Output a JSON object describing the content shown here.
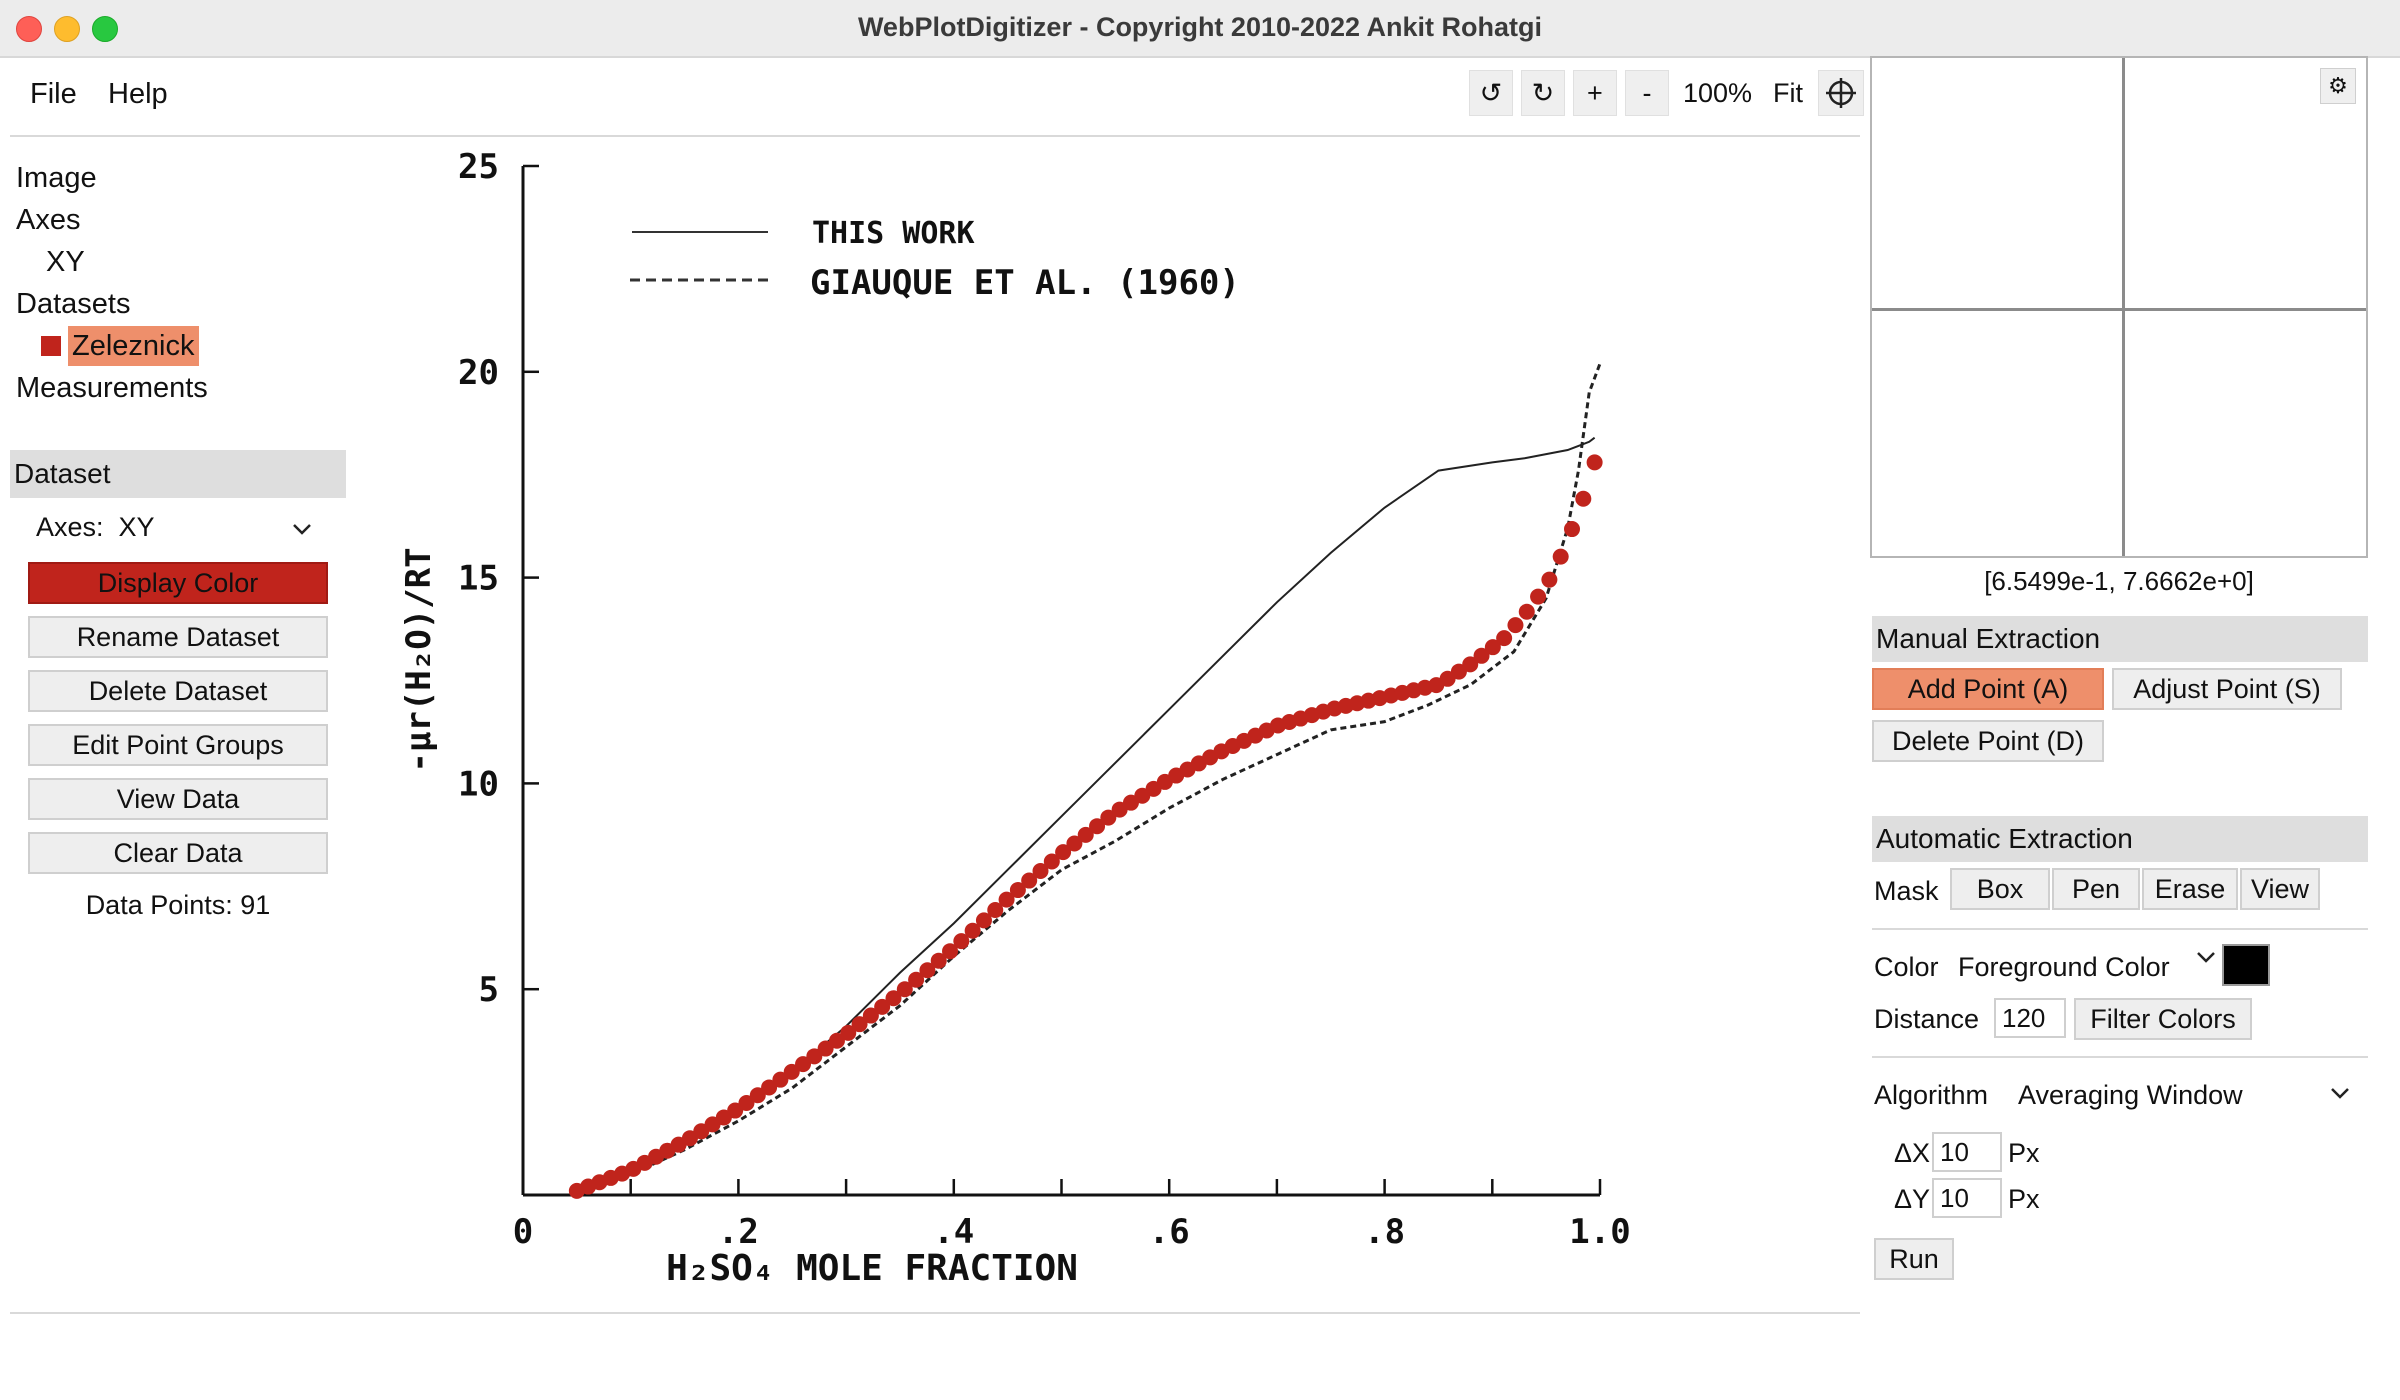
{
  "window": {
    "title": "WebPlotDigitizer - Copyright 2010-2022 Ankit Rohatgi"
  },
  "menu": {
    "file": "File",
    "help": "Help"
  },
  "toolbar": {
    "rotate_left": "↺",
    "rotate_right": "↻",
    "zoom_in": "+",
    "zoom_out": "-",
    "zoom_level": "100%",
    "fit": "Fit"
  },
  "sidebar": {
    "tree": {
      "image": "Image",
      "axes": "Axes",
      "xy": "XY",
      "datasets": "Datasets",
      "dataset_name": "Zeleznick",
      "measurements": "Measurements"
    },
    "dataset_panel": {
      "header": "Dataset",
      "axes_label": "Axes:",
      "axes_value": "XY",
      "display_color": "Display Color",
      "display_color_value": "#c0241c",
      "rename": "Rename Dataset",
      "delete": "Delete Dataset",
      "edit_groups": "Edit Point Groups",
      "view_data": "View Data",
      "clear_data": "Clear Data",
      "data_points": "Data Points: 91"
    }
  },
  "chart_data": {
    "type": "line",
    "xlabel": "H₂SO₄ MOLE FRACTION",
    "ylabel": "-μr(H₂O)/RT",
    "xlim": [
      0,
      1.0
    ],
    "ylim": [
      0,
      25
    ],
    "x_ticks": [
      "0",
      ".2",
      ".4",
      ".6",
      ".8",
      "1.0"
    ],
    "y_ticks": [
      "5",
      "10",
      "15",
      "20",
      "25"
    ],
    "legend": [
      "THIS WORK",
      "GIAUQUE ET AL. (1960)"
    ],
    "legend_position": "top-left",
    "series": [
      {
        "name": "THIS WORK",
        "style": "solid",
        "x": [
          0.05,
          0.1,
          0.15,
          0.2,
          0.25,
          0.3,
          0.35,
          0.4,
          0.45,
          0.5,
          0.55,
          0.6,
          0.65,
          0.7,
          0.75,
          0.8,
          0.85,
          0.9,
          0.93,
          0.95,
          0.97,
          0.98,
          0.99,
          0.995
        ],
        "y": [
          0.1,
          0.5,
          1.2,
          2.0,
          3.0,
          4.1,
          5.4,
          6.6,
          7.9,
          9.2,
          10.5,
          11.8,
          13.1,
          14.4,
          15.6,
          16.7,
          17.6,
          17.8,
          17.9,
          18.0,
          18.1,
          18.2,
          18.3,
          18.4
        ]
      },
      {
        "name": "GIAUQUE ET AL. (1960)",
        "style": "dashed",
        "x": [
          0.05,
          0.1,
          0.15,
          0.2,
          0.25,
          0.3,
          0.35,
          0.4,
          0.45,
          0.5,
          0.55,
          0.6,
          0.65,
          0.7,
          0.75,
          0.8,
          0.84,
          0.88,
          0.92,
          0.95,
          0.97,
          0.98,
          0.99,
          1.0
        ],
        "y": [
          0.1,
          0.5,
          1.1,
          1.8,
          2.6,
          3.6,
          4.6,
          5.8,
          6.9,
          7.9,
          8.6,
          9.4,
          10.1,
          10.7,
          11.3,
          11.5,
          11.9,
          12.4,
          13.2,
          14.5,
          16.2,
          17.6,
          19.5,
          20.2
        ]
      }
    ],
    "digitized_points": {
      "name": "Zeleznick",
      "count": 91,
      "x_range": [
        0.05,
        0.995
      ],
      "points_x": [
        0.05,
        0.1,
        0.15,
        0.2,
        0.25,
        0.3,
        0.35,
        0.4,
        0.45,
        0.5,
        0.55,
        0.6,
        0.65,
        0.7,
        0.75,
        0.8,
        0.85,
        0.88,
        0.91,
        0.93,
        0.95,
        0.96,
        0.97,
        0.98,
        0.99,
        0.995
      ],
      "points_y": [
        0.1,
        0.6,
        1.3,
        2.1,
        3.0,
        3.9,
        4.9,
        6.0,
        7.2,
        8.3,
        9.3,
        10.1,
        10.8,
        11.4,
        11.8,
        12.1,
        12.4,
        12.9,
        13.5,
        14.1,
        14.8,
        15.3,
        15.9,
        16.6,
        17.3,
        17.8
      ]
    }
  },
  "zoom": {
    "gear": "⚙",
    "coords": "[6.5499e-1, 7.6662e+0]"
  },
  "manual": {
    "header": "Manual Extraction",
    "add": "Add Point (A)",
    "adjust": "Adjust Point (S)",
    "delete": "Delete Point (D)"
  },
  "automatic": {
    "header": "Automatic Extraction",
    "mask_label": "Mask",
    "box": "Box",
    "pen": "Pen",
    "erase": "Erase",
    "view": "View",
    "color_label": "Color",
    "color_value": "Foreground Color",
    "color_swatch": "#000000",
    "distance_label": "Distance",
    "distance_value": "120",
    "filter_colors": "Filter Colors",
    "algorithm_label": "Algorithm",
    "algorithm_value": "Averaging Window",
    "dx_label": "ΔX",
    "dx_value": "10",
    "dx_unit": "Px",
    "dy_label": "ΔY",
    "dy_value": "10",
    "dy_unit": "Px",
    "run": "Run"
  }
}
